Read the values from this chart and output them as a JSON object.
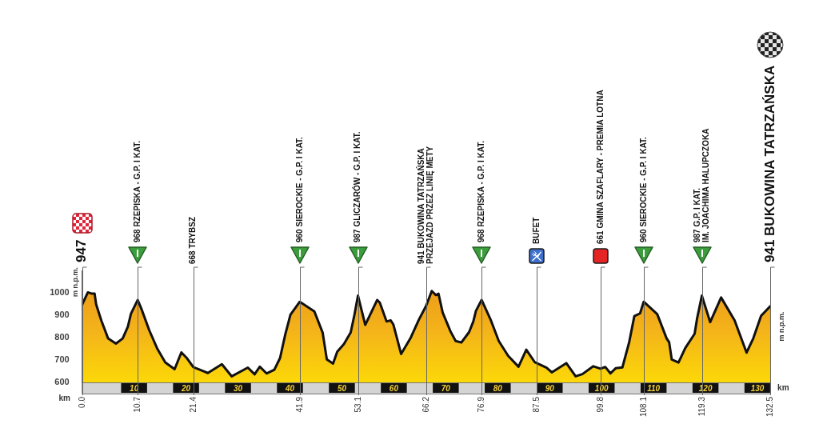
{
  "chart_data": {
    "type": "area",
    "xlabel": "km",
    "ylabel": "m n.p.m.",
    "y2label": "m n.p.m.",
    "x": [
      0,
      1.1,
      1.9,
      2.4,
      2.7,
      3.7,
      5.0,
      6.5,
      7.8,
      8.8,
      9.4,
      10.7,
      11.4,
      12.9,
      14.5,
      16.0,
      17.8,
      19.1,
      20.1,
      21.4,
      24.2,
      26.9,
      28.8,
      31.9,
      33.2,
      34.2,
      35.5,
      37.0,
      38.1,
      39.1,
      40.1,
      41.9,
      44.7,
      46.3,
      47.1,
      48.3,
      49.1,
      50.4,
      51.7,
      52.4,
      53.1,
      54.5,
      56.8,
      57.3,
      58.6,
      59.4,
      59.9,
      61.4,
      63.2,
      64.8,
      66.2,
      67.3,
      68.1,
      68.6,
      69.4,
      70.9,
      71.9,
      73.0,
      74.5,
      75.3,
      75.8,
      76.9,
      78.6,
      80.2,
      82.0,
      84.0,
      85.5,
      87.1,
      89.4,
      90.4,
      93.2,
      95.0,
      96.3,
      98.4,
      99.8,
      100.7,
      101.7,
      102.7,
      104.0,
      105.3,
      106.3,
      107.4,
      108.1,
      110.7,
      112.5,
      113.0,
      113.5,
      114.8,
      116.1,
      117.9,
      118.4,
      119.3,
      120.9,
      123.0,
      125.6,
      127.9,
      129.2,
      130.7,
      132.5
    ],
    "values": [
      947,
      1002,
      996,
      996,
      948,
      876,
      796,
      773,
      796,
      849,
      907,
      968,
      929,
      834,
      749,
      689,
      659,
      734,
      710,
      668,
      642,
      681,
      627,
      666,
      636,
      670,
      640,
      657,
      709,
      814,
      902,
      960,
      917,
      822,
      703,
      684,
      737,
      771,
      823,
      900,
      987,
      857,
      968,
      956,
      872,
      877,
      859,
      727,
      797,
      879,
      941,
      1008,
      990,
      996,
      912,
      828,
      785,
      778,
      825,
      872,
      919,
      968,
      882,
      785,
      719,
      670,
      746,
      691,
      666,
      645,
      686,
      627,
      637,
      672,
      661,
      669,
      640,
      663,
      667,
      779,
      896,
      908,
      960,
      905,
      797,
      779,
      702,
      689,
      753,
      817,
      888,
      987,
      869,
      979,
      877,
      733,
      797,
      897,
      941
    ],
    "color": "#f4b41a",
    "xlim": [
      0,
      132.5
    ],
    "xticks": [
      10,
      20,
      30,
      40,
      50,
      60,
      70,
      80,
      90,
      100,
      110,
      120,
      130
    ],
    "ylim": [
      600,
      1100
    ],
    "yticks": [
      600,
      700,
      800,
      900,
      1000
    ],
    "ref_lines": [
      {
        "axis": "x",
        "value": 0,
        "label": "0.0"
      },
      {
        "axis": "x",
        "value": 10.7,
        "label": "10.7"
      },
      {
        "axis": "x",
        "value": 21.4,
        "label": "21.4"
      },
      {
        "axis": "x",
        "value": 41.9,
        "label": "41.9"
      },
      {
        "axis": "x",
        "value": 53.1,
        "label": "53.1"
      },
      {
        "axis": "x",
        "value": 66.2,
        "label": "66.2"
      },
      {
        "axis": "x",
        "value": 76.9,
        "label": "76.9"
      },
      {
        "axis": "x",
        "value": 87.5,
        "label": "87.5"
      },
      {
        "axis": "x",
        "value": 99.8,
        "label": "99.8"
      },
      {
        "axis": "x",
        "value": 108.1,
        "label": "108.1"
      },
      {
        "axis": "x",
        "value": 119.3,
        "label": "119.3"
      },
      {
        "axis": "x",
        "value": 132.5,
        "label": "132.5"
      }
    ],
    "annotations": [
      "947",
      "968 RZEPISKA - G.P. I KAT.",
      "668 TRYBSZ",
      "960 SIEROCKIE - G.P. I KAT.",
      "987 GLICZARÓW - G.P. I KAT.",
      "941 BUKOWINA TATRZAŃSKA\nPRZEJAZD PRZEZ LINIĘ METY",
      "968 RZEPISKA - G.P. I KAT.",
      "BUFET",
      "661 GMINA SZAFLARY - PREMIA LOTNA",
      "960 SIEROCKIE - G.P. I KAT.",
      "987 G.P. I KAT.\nIM. JOACHIMA HALUPCZOKA",
      "941 BUKOWINA TATRZAŃSKA"
    ]
  }
}
